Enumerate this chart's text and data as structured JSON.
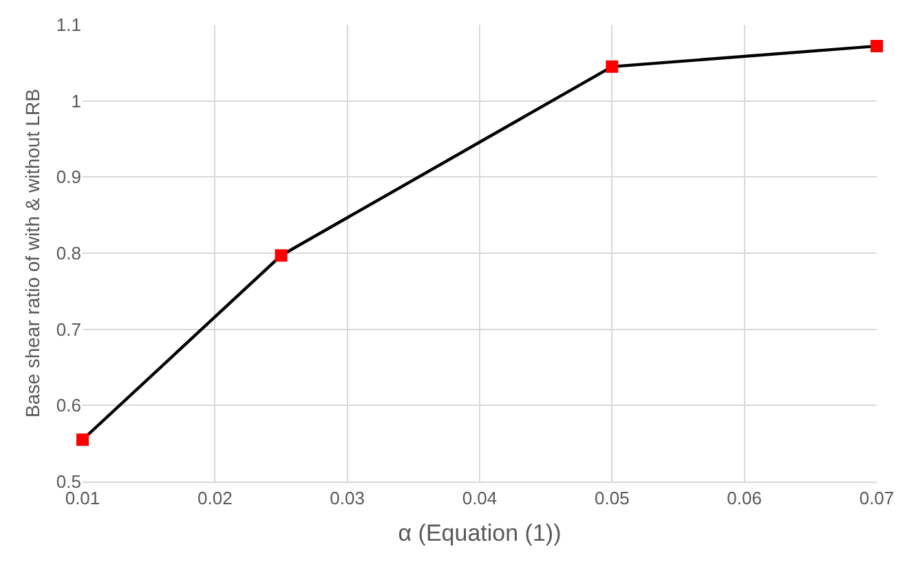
{
  "chart_data": {
    "type": "line",
    "xlabel": "α (Equation (1))",
    "ylabel": "Base shear ratio of with & without LRB",
    "x": [
      0.01,
      0.025,
      0.05,
      0.07
    ],
    "series": [
      {
        "color": "#000000",
        "colors": [
          "#ff0000",
          "#ff0000",
          "#ff0000",
          "#ff0000"
        ],
        "values": [
          0.555,
          0.797,
          1.045,
          1.072
        ]
      }
    ],
    "xlim": [
      0.01,
      0.07
    ],
    "xticks": [
      0.01,
      0.02,
      0.03,
      0.04,
      0.05,
      0.06,
      0.07
    ],
    "ylim": [
      0.5,
      1.1
    ],
    "yticks": [
      0.5,
      0.6,
      0.7,
      0.8,
      0.9,
      1,
      1.1
    ],
    "grid": true,
    "marker": "square",
    "line_style": "solid"
  }
}
